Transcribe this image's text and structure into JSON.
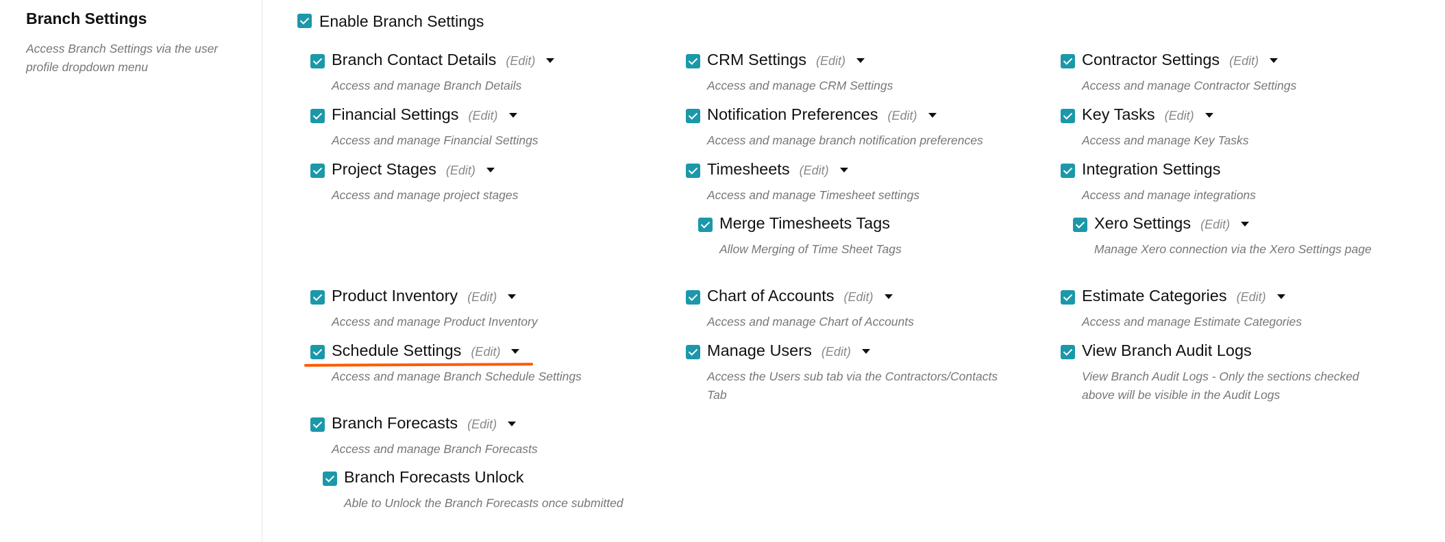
{
  "sidebar": {
    "title": "Branch Settings",
    "description": "Access Branch Settings via the user profile dropdown menu"
  },
  "enable": {
    "label": "Enable Branch Settings",
    "checked": true
  },
  "accent_color": "#1b98a9",
  "highlight_color": "#ff5a00",
  "columns": [
    [
      {
        "label": "Branch Contact Details",
        "edit": "(Edit)",
        "dropdown": true,
        "description": "Access and manage Branch Details",
        "checked": true
      },
      {
        "label": "Financial Settings",
        "edit": "(Edit)",
        "dropdown": true,
        "description": "Access and manage Financial Settings",
        "checked": true
      },
      {
        "label": "Project Stages",
        "edit": "(Edit)",
        "dropdown": true,
        "description": "Access and manage project stages",
        "checked": true
      },
      {
        "label": "Product Inventory",
        "edit": "(Edit)",
        "dropdown": true,
        "description": "Access and manage Product Inventory",
        "checked": true
      },
      {
        "label": "Schedule Settings",
        "edit": "(Edit)",
        "dropdown": true,
        "description": "Access and manage Branch Schedule Settings",
        "checked": true,
        "highlighted": true
      },
      {
        "label": "Branch Forecasts",
        "edit": "(Edit)",
        "dropdown": true,
        "description": "Access and manage Branch Forecasts",
        "checked": true
      },
      {
        "label": "Branch Forecasts Unlock",
        "description": "Able to Unlock the Branch Forecasts once submitted",
        "checked": true,
        "sub": true
      }
    ],
    [
      {
        "label": "CRM Settings",
        "edit": "(Edit)",
        "dropdown": true,
        "description": "Access and manage CRM Settings",
        "checked": true
      },
      {
        "label": "Notification Preferences",
        "edit": "(Edit)",
        "dropdown": true,
        "description": "Access and manage branch notification preferences",
        "checked": true
      },
      {
        "label": "Timesheets",
        "edit": "(Edit)",
        "dropdown": true,
        "description": "Access and manage Timesheet settings",
        "checked": true
      },
      {
        "label": "Merge Timesheets Tags",
        "description": "Allow Merging of Time Sheet Tags",
        "checked": true,
        "sub": true
      },
      {
        "label": "Chart of Accounts",
        "edit": "(Edit)",
        "dropdown": true,
        "description": "Access and manage Chart of Accounts",
        "checked": true
      },
      {
        "label": "Manage Users",
        "edit": "(Edit)",
        "dropdown": true,
        "description": "Access the Users sub tab via the Contractors/Contacts Tab",
        "checked": true
      }
    ],
    [
      {
        "label": "Contractor Settings",
        "edit": "(Edit)",
        "dropdown": true,
        "description": "Access and manage Contractor Settings",
        "checked": true
      },
      {
        "label": "Key Tasks",
        "edit": "(Edit)",
        "dropdown": true,
        "description": "Access and manage Key Tasks",
        "checked": true
      },
      {
        "label": "Integration Settings",
        "description": "Access and manage integrations",
        "checked": true
      },
      {
        "label": "Xero Settings",
        "edit": "(Edit)",
        "dropdown": true,
        "description": "Manage Xero connection via the Xero Settings page",
        "checked": true,
        "sub": true
      },
      {
        "label": "Estimate Categories",
        "edit": "(Edit)",
        "dropdown": true,
        "description": "Access and manage Estimate Categories",
        "checked": true
      },
      {
        "label": "View Branch Audit Logs",
        "description": "View Branch Audit Logs - Only the sections checked above will be visible in the Audit Logs",
        "checked": true
      }
    ]
  ]
}
